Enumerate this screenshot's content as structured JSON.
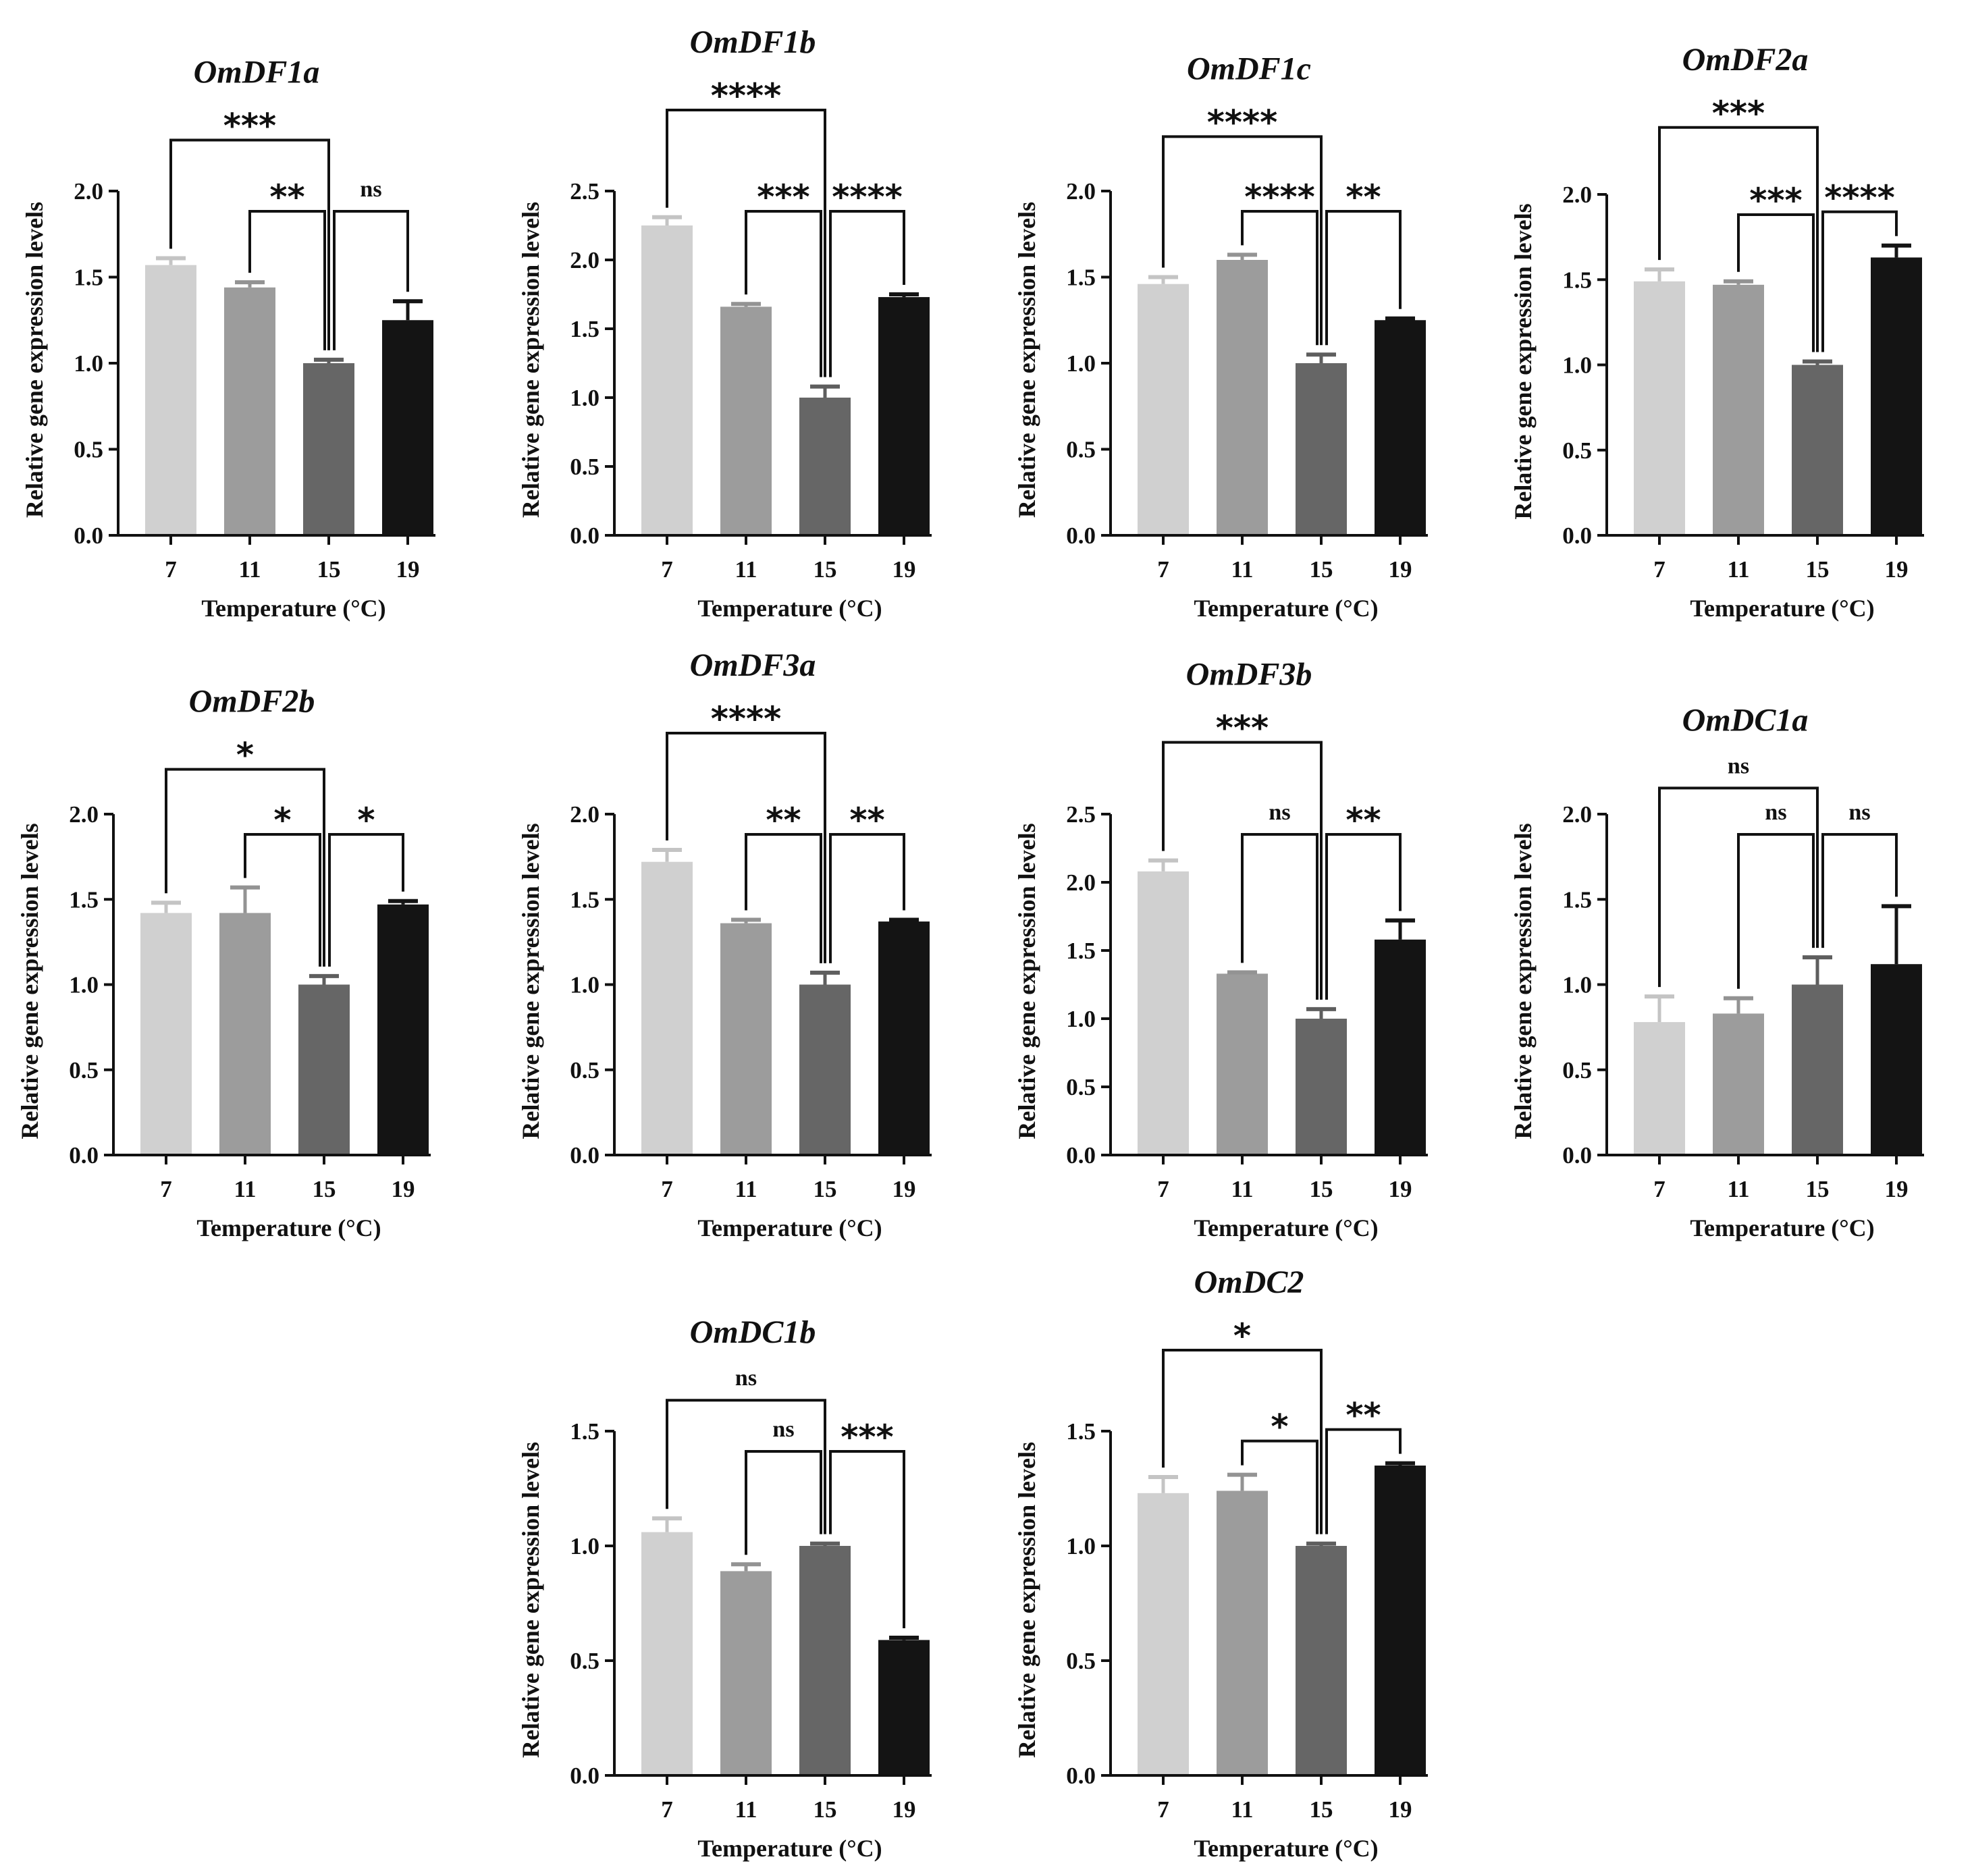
{
  "figure": {
    "xlabel": "Temperature (°C)",
    "ylabel": "Relative gene expression levels",
    "bar_colors": [
      "#d0d0d0",
      "#9c9c9c",
      "#666666",
      "#141414"
    ],
    "errbar_colors": [
      "#c4c4c4",
      "#939393",
      "#5e5e5e",
      "#141414"
    ],
    "axis_color": "#111111"
  },
  "chart_data": [
    {
      "type": "bar",
      "title": "OmDF1a",
      "xlabel": "Temperature (°C)",
      "ylabel": "Relative gene expression levels",
      "categories": [
        "7",
        "11",
        "15",
        "19"
      ],
      "values": [
        1.57,
        1.44,
        1.0,
        1.25
      ],
      "errors": [
        0.04,
        0.03,
        0.02,
        0.11
      ],
      "ylim": [
        0,
        2.0
      ],
      "yticks": [
        "0.0",
        "0.5",
        "1.0",
        "1.5",
        "2.0"
      ],
      "significance": [
        {
          "from": "7",
          "to": "15",
          "label": "***"
        },
        {
          "from": "11",
          "to": "15",
          "label": "**"
        },
        {
          "from": "15",
          "to": "19",
          "label": "ns"
        }
      ]
    },
    {
      "type": "bar",
      "title": "OmDF1b",
      "xlabel": "Temperature (°C)",
      "ylabel": "Relative gene expression levels",
      "categories": [
        "7",
        "11",
        "15",
        "19"
      ],
      "values": [
        2.25,
        1.66,
        1.0,
        1.73
      ],
      "errors": [
        0.06,
        0.02,
        0.08,
        0.02
      ],
      "ylim": [
        0,
        2.5
      ],
      "yticks": [
        "0.0",
        "0.5",
        "1.0",
        "1.5",
        "2.0",
        "2.5"
      ],
      "significance": [
        {
          "from": "7",
          "to": "15",
          "label": "****"
        },
        {
          "from": "11",
          "to": "15",
          "label": "***"
        },
        {
          "from": "15",
          "to": "19",
          "label": "****"
        }
      ]
    },
    {
      "type": "bar",
      "title": "OmDF1c",
      "xlabel": "Temperature (°C)",
      "ylabel": "Relative gene expression levels",
      "categories": [
        "7",
        "11",
        "15",
        "19"
      ],
      "values": [
        1.46,
        1.6,
        1.0,
        1.25
      ],
      "errors": [
        0.04,
        0.03,
        0.05,
        0.01
      ],
      "ylim": [
        0,
        2.0
      ],
      "yticks": [
        "0.0",
        "0.5",
        "1.0",
        "1.5",
        "2.0"
      ],
      "significance": [
        {
          "from": "7",
          "to": "15",
          "label": "****"
        },
        {
          "from": "11",
          "to": "15",
          "label": "****"
        },
        {
          "from": "15",
          "to": "19",
          "label": "**"
        }
      ]
    },
    {
      "type": "bar",
      "title": "OmDF2a",
      "xlabel": "Temperature (°C)",
      "ylabel": "Relative gene expression levels",
      "categories": [
        "7",
        "11",
        "15",
        "19"
      ],
      "values": [
        1.49,
        1.47,
        1.0,
        1.63
      ],
      "errors": [
        0.07,
        0.02,
        0.02,
        0.07
      ],
      "ylim": [
        0,
        2.0
      ],
      "yticks": [
        "0.0",
        "0.5",
        "1.0",
        "1.5",
        "2.0"
      ],
      "significance": [
        {
          "from": "7",
          "to": "15",
          "label": "***"
        },
        {
          "from": "11",
          "to": "15",
          "label": "***"
        },
        {
          "from": "15",
          "to": "19",
          "label": "****"
        }
      ]
    },
    {
      "type": "bar",
      "title": "OmDF2b",
      "xlabel": "Temperature (°C)",
      "ylabel": "Relative gene expression levels",
      "categories": [
        "7",
        "11",
        "15",
        "19"
      ],
      "values": [
        1.42,
        1.42,
        1.0,
        1.47
      ],
      "errors": [
        0.06,
        0.15,
        0.05,
        0.02
      ],
      "ylim": [
        0,
        2.0
      ],
      "yticks": [
        "0.0",
        "0.5",
        "1.0",
        "1.5",
        "2.0"
      ],
      "significance": [
        {
          "from": "7",
          "to": "15",
          "label": "*"
        },
        {
          "from": "11",
          "to": "15",
          "label": "*"
        },
        {
          "from": "15",
          "to": "19",
          "label": "*"
        }
      ]
    },
    {
      "type": "bar",
      "title": "OmDF3a",
      "xlabel": "Temperature (°C)",
      "ylabel": "Relative gene expression levels",
      "categories": [
        "7",
        "11",
        "15",
        "19"
      ],
      "values": [
        1.72,
        1.36,
        1.0,
        1.37
      ],
      "errors": [
        0.07,
        0.02,
        0.07,
        0.01
      ],
      "ylim": [
        0,
        2.0
      ],
      "yticks": [
        "0.0",
        "0.5",
        "1.0",
        "1.5",
        "2.0"
      ],
      "significance": [
        {
          "from": "7",
          "to": "15",
          "label": "****"
        },
        {
          "from": "11",
          "to": "15",
          "label": "**"
        },
        {
          "from": "15",
          "to": "19",
          "label": "**"
        }
      ]
    },
    {
      "type": "bar",
      "title": "OmDF3b",
      "xlabel": "Temperature (°C)",
      "ylabel": "Relative gene expression levels",
      "categories": [
        "7",
        "11",
        "15",
        "19"
      ],
      "values": [
        2.08,
        1.33,
        1.0,
        1.58
      ],
      "errors": [
        0.08,
        0.01,
        0.07,
        0.14
      ],
      "ylim": [
        0,
        2.5
      ],
      "yticks": [
        "0.0",
        "0.5",
        "1.0",
        "1.5",
        "2.0",
        "2.5"
      ],
      "significance": [
        {
          "from": "7",
          "to": "15",
          "label": "***"
        },
        {
          "from": "11",
          "to": "15",
          "label": "ns"
        },
        {
          "from": "15",
          "to": "19",
          "label": "**"
        }
      ]
    },
    {
      "type": "bar",
      "title": "OmDC1a",
      "xlabel": "Temperature (°C)",
      "ylabel": "Relative gene expression levels",
      "categories": [
        "7",
        "11",
        "15",
        "19"
      ],
      "values": [
        0.78,
        0.83,
        1.0,
        1.12
      ],
      "errors": [
        0.15,
        0.09,
        0.16,
        0.34
      ],
      "ylim": [
        0,
        2.0
      ],
      "yticks": [
        "0.0",
        "0.5",
        "1.0",
        "1.5",
        "2.0"
      ],
      "significance": [
        {
          "from": "7",
          "to": "15",
          "label": "ns"
        },
        {
          "from": "11",
          "to": "15",
          "label": "ns"
        },
        {
          "from": "15",
          "to": "19",
          "label": "ns"
        }
      ]
    },
    {
      "type": "bar",
      "title": "OmDC1b",
      "xlabel": "Temperature (°C)",
      "ylabel": "Relative gene expression levels",
      "categories": [
        "7",
        "11",
        "15",
        "19"
      ],
      "values": [
        1.06,
        0.89,
        1.0,
        0.59
      ],
      "errors": [
        0.06,
        0.03,
        0.01,
        0.01
      ],
      "ylim": [
        0,
        1.5
      ],
      "yticks": [
        "0.0",
        "0.5",
        "1.0",
        "1.5"
      ],
      "significance": [
        {
          "from": "7",
          "to": "15",
          "label": "ns"
        },
        {
          "from": "11",
          "to": "15",
          "label": "ns"
        },
        {
          "from": "15",
          "to": "19",
          "label": "***"
        }
      ]
    },
    {
      "type": "bar",
      "title": "OmDC2",
      "xlabel": "Temperature (°C)",
      "ylabel": "Relative gene expression levels",
      "categories": [
        "7",
        "11",
        "15",
        "19"
      ],
      "values": [
        1.23,
        1.24,
        1.0,
        1.35
      ],
      "errors": [
        0.07,
        0.07,
        0.01,
        0.01
      ],
      "ylim": [
        0,
        1.5
      ],
      "yticks": [
        "0.0",
        "0.5",
        "1.0",
        "1.5"
      ],
      "significance": [
        {
          "from": "7",
          "to": "15",
          "label": "*"
        },
        {
          "from": "11",
          "to": "15",
          "label": "*"
        },
        {
          "from": "15",
          "to": "19",
          "label": "**"
        }
      ]
    }
  ]
}
